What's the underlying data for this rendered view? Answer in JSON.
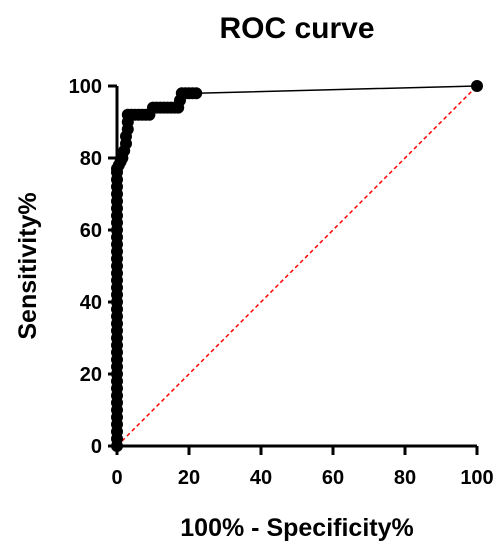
{
  "chart_data": {
    "type": "line",
    "title": "ROC curve",
    "xlabel": "100% - Specificity%",
    "ylabel": "Sensitivity%",
    "xlim": [
      0,
      100
    ],
    "ylim": [
      0,
      100
    ],
    "x_ticks": [
      "0",
      "20",
      "40",
      "60",
      "80",
      "100"
    ],
    "y_ticks": [
      "0",
      "20",
      "40",
      "60",
      "80",
      "100"
    ],
    "colors": {
      "curve": "#000000",
      "reference": "#ff0000"
    },
    "series": [
      {
        "x": [
          0,
          0,
          0,
          0,
          0,
          0,
          0,
          0,
          0,
          0,
          0,
          0,
          0,
          0,
          0,
          0,
          0,
          0,
          0,
          0,
          0,
          0,
          0,
          0,
          0,
          0,
          0,
          0,
          0,
          0,
          0,
          0,
          0,
          0,
          0,
          0,
          0,
          0,
          0,
          0,
          0.5,
          1,
          1.5,
          2,
          2.5,
          2.5,
          3,
          3,
          3,
          4,
          5,
          6,
          7,
          8,
          9,
          10,
          11,
          12,
          13,
          14,
          15,
          16,
          17,
          17.5,
          18,
          19,
          20,
          21,
          22,
          100
        ],
        "y": [
          0,
          2,
          4,
          6,
          8,
          10,
          12,
          14,
          16,
          18,
          20,
          22,
          24,
          26,
          28,
          30,
          32,
          34,
          36,
          38,
          40,
          42,
          44,
          46,
          48,
          50,
          52,
          54,
          56,
          58,
          60,
          62,
          64,
          66,
          68,
          70,
          72,
          74,
          76,
          77,
          78,
          79,
          80,
          82,
          84,
          86,
          88,
          90,
          92,
          92,
          92,
          92,
          92,
          92,
          92,
          94,
          94,
          94,
          94,
          94,
          94,
          94,
          94,
          96,
          98,
          98,
          98,
          98,
          98,
          100
        ]
      },
      {
        "x": [
          0,
          100
        ],
        "y": [
          0,
          100
        ]
      }
    ]
  }
}
